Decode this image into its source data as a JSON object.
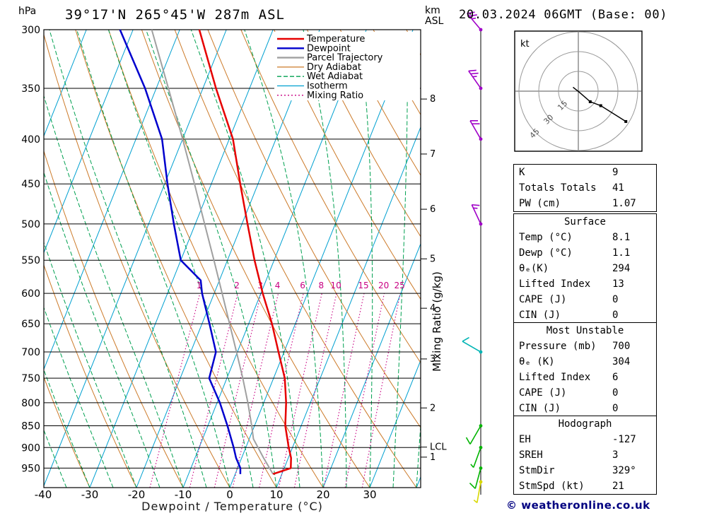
{
  "header": {
    "station": "39°17'N 265°45'W 287m ASL",
    "datetime": "20.03.2024 06GMT (Base: 00)",
    "pressure_unit": "hPa",
    "altitude_unit": "km ASL"
  },
  "axes": {
    "xlabel": "Dewpoint / Temperature (°C)",
    "right_axis_label": "Mixing Ratio (g/kg)",
    "pressure_ticks": [
      300,
      350,
      400,
      450,
      500,
      550,
      600,
      650,
      700,
      750,
      800,
      850,
      900,
      950
    ],
    "temp_ticks": [
      -40,
      -30,
      -20,
      -10,
      0,
      10,
      20,
      30
    ],
    "km_ticks": [
      {
        "km": "1",
        "p": 923
      },
      {
        "km": "2",
        "p": 811
      },
      {
        "km": "3",
        "p": 713
      },
      {
        "km": "4",
        "p": 624
      },
      {
        "km": "5",
        "p": 548
      },
      {
        "km": "6",
        "p": 481
      },
      {
        "km": "7",
        "p": 416
      },
      {
        "km": "8",
        "p": 360
      }
    ],
    "lcl": {
      "label": "LCL",
      "p": 899
    }
  },
  "legend": [
    {
      "label": "Temperature",
      "color": "#e60000",
      "dash": "",
      "width": 2.4
    },
    {
      "label": "Dewpoint",
      "color": "#0000cd",
      "dash": "",
      "width": 2.4
    },
    {
      "label": "Parcel Trajectory",
      "color": "#a0a0a0",
      "dash": "",
      "width": 2.4
    },
    {
      "label": "Dry Adiabat",
      "color": "#cc7a29",
      "dash": "",
      "width": 1.3
    },
    {
      "label": "Wet Adiabat",
      "color": "#00a050",
      "dash": "6 3",
      "width": 1.3
    },
    {
      "label": "Isotherm",
      "color": "#00a0d0",
      "dash": "",
      "width": 1.3
    },
    {
      "label": "Mixing Ratio",
      "color": "#c80082",
      "dash": "2 3",
      "width": 1.3
    }
  ],
  "chart_data": {
    "type": "skewt-log-p",
    "pressure_range_hpa": [
      300,
      1000
    ],
    "temp_axis_range_c": [
      -40,
      40
    ],
    "isotherms_c": {
      "min": -80,
      "max": 40,
      "step": 10
    },
    "dry_adiabats_theta_c": {
      "min": -40,
      "max": 120,
      "step": 10
    },
    "wet_adiabats_start_c": {
      "min": -40,
      "max": 40,
      "step": 5
    },
    "mixing_ratio_g_kg": [
      1,
      2,
      3,
      4,
      6,
      8,
      10,
      15,
      20,
      25
    ],
    "series": [
      {
        "name": "Temperature",
        "color_key": "temperature",
        "points": [
          [
            965,
            8.1
          ],
          [
            950,
            11.4
          ],
          [
            925,
            10.6
          ],
          [
            900,
            9.2
          ],
          [
            850,
            6.6
          ],
          [
            800,
            4.8
          ],
          [
            750,
            2.4
          ],
          [
            700,
            -1.2
          ],
          [
            650,
            -5.0
          ],
          [
            600,
            -9.6
          ],
          [
            550,
            -14.2
          ],
          [
            500,
            -18.8
          ],
          [
            450,
            -23.8
          ],
          [
            400,
            -29.2
          ],
          [
            350,
            -37.2
          ],
          [
            300,
            -45.8
          ]
        ]
      },
      {
        "name": "Dewpoint",
        "color_key": "dewpoint",
        "points": [
          [
            965,
            1.1
          ],
          [
            950,
            0.6
          ],
          [
            925,
            -1.2
          ],
          [
            900,
            -2.6
          ],
          [
            850,
            -5.8
          ],
          [
            800,
            -9.4
          ],
          [
            750,
            -13.8
          ],
          [
            700,
            -14.6
          ],
          [
            650,
            -18.4
          ],
          [
            600,
            -22.6
          ],
          [
            580,
            -24.0
          ],
          [
            550,
            -30.0
          ],
          [
            500,
            -34.6
          ],
          [
            450,
            -39.4
          ],
          [
            400,
            -44.4
          ],
          [
            350,
            -52.4
          ],
          [
            300,
            -62.8
          ]
        ]
      },
      {
        "name": "Parcel Trajectory",
        "color_key": "parcel",
        "points": [
          [
            965,
            8.1
          ],
          [
            925,
            4.7
          ],
          [
            880,
            0.9
          ],
          [
            850,
            -0.6
          ],
          [
            800,
            -3.4
          ],
          [
            750,
            -6.6
          ],
          [
            700,
            -10.2
          ],
          [
            650,
            -14.1
          ],
          [
            600,
            -18.3
          ],
          [
            550,
            -22.9
          ],
          [
            500,
            -28.0
          ],
          [
            450,
            -33.6
          ],
          [
            400,
            -40.0
          ],
          [
            350,
            -47.4
          ],
          [
            300,
            -56.0
          ]
        ]
      }
    ],
    "wind_barbs": [
      {
        "p": 300,
        "speed_kt": 25,
        "dir_deg": 320,
        "color": "#a000c8"
      },
      {
        "p": 350,
        "speed_kt": 25,
        "dir_deg": 325,
        "color": "#a000c8"
      },
      {
        "p": 400,
        "speed_kt": 20,
        "dir_deg": 330,
        "color": "#a000c8"
      },
      {
        "p": 500,
        "speed_kt": 15,
        "dir_deg": 335,
        "color": "#a000c8"
      },
      {
        "p": 700,
        "speed_kt": 10,
        "dir_deg": 300,
        "color": "#00b4b4"
      },
      {
        "p": 850,
        "speed_kt": 10,
        "dir_deg": 210,
        "color": "#00b400"
      },
      {
        "p": 900,
        "speed_kt": 5,
        "dir_deg": 200,
        "color": "#00b400"
      },
      {
        "p": 950,
        "speed_kt": 10,
        "dir_deg": 195,
        "color": "#00b400"
      },
      {
        "p": 985,
        "speed_kt": 5,
        "dir_deg": 190,
        "color": "#d8d800"
      }
    ]
  },
  "hodograph": {
    "unit_label": "kt",
    "rings_kt": [
      15,
      30,
      45
    ],
    "trace_uv_kt": [
      [
        -4,
        3
      ],
      [
        1,
        -1
      ],
      [
        9,
        -8
      ],
      [
        17,
        -11
      ],
      [
        36,
        -23
      ]
    ]
  },
  "tables": {
    "indices": {
      "rows": [
        {
          "label": "K",
          "value": "9"
        },
        {
          "label": "Totals Totals",
          "value": "41"
        },
        {
          "label": "PW (cm)",
          "value": "1.07"
        }
      ]
    },
    "surface": {
      "title": "Surface",
      "rows": [
        {
          "label": "Temp (°C)",
          "value": "8.1"
        },
        {
          "label": "Dewp (°C)",
          "value": "1.1"
        },
        {
          "label": "θₑ(K)",
          "value": "294"
        },
        {
          "label": "Lifted Index",
          "value": "13"
        },
        {
          "label": "CAPE (J)",
          "value": "0"
        },
        {
          "label": "CIN (J)",
          "value": "0"
        }
      ]
    },
    "most_unstable": {
      "title": "Most Unstable",
      "rows": [
        {
          "label": "Pressure (mb)",
          "value": "700"
        },
        {
          "label": "θₑ (K)",
          "value": "304"
        },
        {
          "label": "Lifted Index",
          "value": "6"
        },
        {
          "label": "CAPE (J)",
          "value": "0"
        },
        {
          "label": "CIN (J)",
          "value": "0"
        }
      ]
    },
    "hodograph": {
      "title": "Hodograph",
      "rows": [
        {
          "label": "EH",
          "value": "-127"
        },
        {
          "label": "SREH",
          "value": "3"
        },
        {
          "label": "StmDir",
          "value": "329°"
        },
        {
          "label": "StmSpd (kt)",
          "value": "21"
        }
      ]
    }
  },
  "colors": {
    "temperature": "#e60000",
    "dewpoint": "#0000cd",
    "parcel": "#a0a0a0",
    "dry_adiabat": "#cc7a29",
    "wet_adiabat": "#00a050",
    "isotherm": "#00a0d0",
    "mixing_ratio": "#c80082",
    "axis": "#000000"
  },
  "footer": {
    "copyright": "© weatheronline.co.uk"
  }
}
